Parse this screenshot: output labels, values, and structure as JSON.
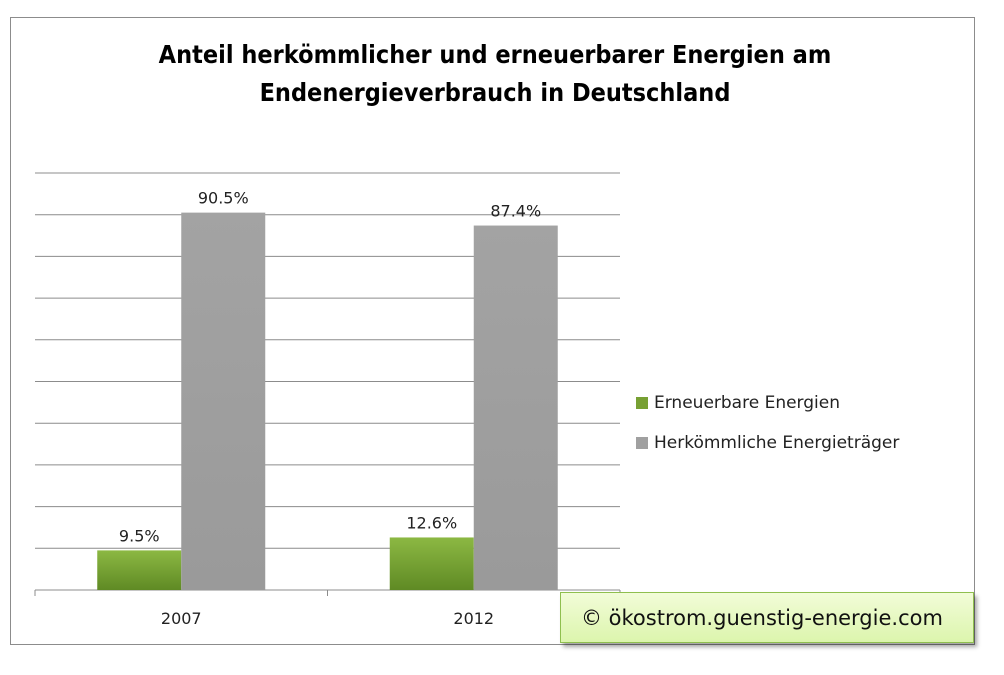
{
  "chart_data": {
    "type": "bar",
    "title": "Anteil herkömmlicher  und erneuerbarer Energien am Endenergieverbrauch in Deutschland",
    "categories": [
      "2007",
      "2012"
    ],
    "series": [
      {
        "name": "Erneuerbare Energien",
        "values": [
          9.5,
          12.6
        ],
        "labels": [
          "9.5%",
          "12.6%"
        ],
        "color": "#77a033"
      },
      {
        "name": "Herkömmliche Energieträger",
        "values": [
          90.5,
          87.4
        ],
        "labels": [
          "90.5%",
          "87.4%"
        ],
        "color": "#a0a0a0"
      }
    ],
    "ylim": [
      0,
      100
    ],
    "grid": true,
    "legend": "right"
  },
  "watermark": "© ökostrom.guenstig-energie.com"
}
